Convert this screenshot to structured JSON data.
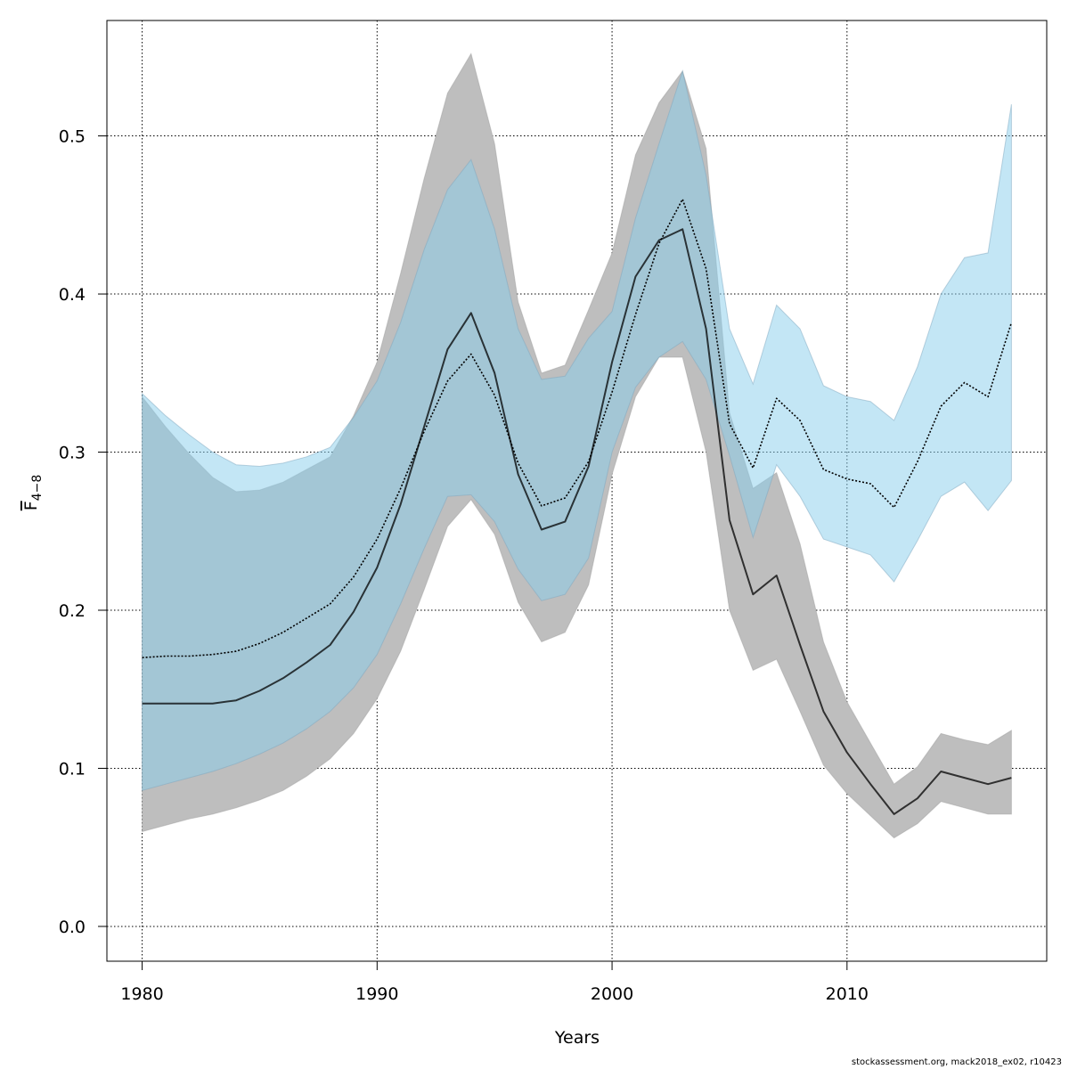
{
  "chart_data": {
    "type": "line",
    "xlabel": "Years",
    "ylabel": {
      "main": "F",
      "sub": "4−8"
    },
    "xlim": [
      1978.5,
      2018.5
    ],
    "ylim": [
      -0.022,
      0.573
    ],
    "xticks": [
      1980,
      1990,
      2000,
      2010
    ],
    "yticks": [
      0.0,
      0.1,
      0.2,
      0.3,
      0.4,
      0.5
    ],
    "ytick_labels": [
      "0.0",
      "0.1",
      "0.2",
      "0.3",
      "0.4",
      "0.5"
    ],
    "grid": true,
    "x": [
      1980,
      1981,
      1982,
      1983,
      1984,
      1985,
      1986,
      1987,
      1988,
      1989,
      1990,
      1991,
      1992,
      1993,
      1994,
      1995,
      1996,
      1997,
      1998,
      1999,
      2000,
      2001,
      2002,
      2003,
      2004,
      2005,
      2006,
      2007,
      2008,
      2009,
      2010,
      2011,
      2012,
      2013,
      2014,
      2015,
      2016,
      2017
    ],
    "series": [
      {
        "line_style": "solid",
        "color": "#000000",
        "band_color": "#bebebe",
        "values": [
          0.141,
          0.141,
          0.141,
          0.141,
          0.143,
          0.149,
          0.157,
          0.167,
          0.178,
          0.199,
          0.227,
          0.267,
          0.316,
          0.365,
          0.388,
          0.35,
          0.286,
          0.251,
          0.256,
          0.291,
          0.357,
          0.411,
          0.434,
          0.441,
          0.378,
          0.257,
          0.21,
          0.222,
          0.178,
          0.136,
          0.11,
          0.09,
          0.071,
          0.081,
          0.098,
          0.094,
          0.09,
          0.094
        ],
        "lower": [
          0.06,
          0.064,
          0.068,
          0.071,
          0.075,
          0.08,
          0.086,
          0.095,
          0.106,
          0.122,
          0.144,
          0.174,
          0.213,
          0.253,
          0.27,
          0.248,
          0.205,
          0.18,
          0.186,
          0.216,
          0.286,
          0.335,
          0.36,
          0.36,
          0.3,
          0.2,
          0.162,
          0.169,
          0.136,
          0.102,
          0.084,
          0.07,
          0.056,
          0.065,
          0.079,
          0.075,
          0.071,
          0.071
        ],
        "upper": [
          0.335,
          0.316,
          0.299,
          0.284,
          0.275,
          0.276,
          0.281,
          0.289,
          0.297,
          0.323,
          0.357,
          0.413,
          0.473,
          0.527,
          0.552,
          0.495,
          0.395,
          0.35,
          0.355,
          0.39,
          0.426,
          0.488,
          0.521,
          0.541,
          0.492,
          0.325,
          0.277,
          0.287,
          0.242,
          0.18,
          0.142,
          0.116,
          0.09,
          0.101,
          0.122,
          0.118,
          0.115,
          0.124
        ]
      },
      {
        "line_style": "dotted",
        "color": "#000000",
        "band_color": "#87ceeb",
        "values": [
          0.17,
          0.171,
          0.171,
          0.172,
          0.174,
          0.179,
          0.186,
          0.195,
          0.204,
          0.221,
          0.245,
          0.277,
          0.313,
          0.345,
          0.362,
          0.336,
          0.293,
          0.266,
          0.271,
          0.294,
          0.338,
          0.387,
          0.432,
          0.46,
          0.416,
          0.318,
          0.29,
          0.334,
          0.32,
          0.289,
          0.283,
          0.28,
          0.265,
          0.294,
          0.329,
          0.344,
          0.335,
          0.382
        ],
        "lower": [
          0.086,
          0.09,
          0.094,
          0.098,
          0.103,
          0.109,
          0.116,
          0.125,
          0.136,
          0.151,
          0.172,
          0.204,
          0.239,
          0.272,
          0.273,
          0.256,
          0.226,
          0.206,
          0.21,
          0.233,
          0.3,
          0.341,
          0.36,
          0.37,
          0.346,
          0.298,
          0.246,
          0.292,
          0.272,
          0.245,
          0.24,
          0.235,
          0.218,
          0.244,
          0.272,
          0.281,
          0.263,
          0.282
        ],
        "upper": [
          0.337,
          0.323,
          0.311,
          0.3,
          0.292,
          0.291,
          0.293,
          0.297,
          0.303,
          0.322,
          0.345,
          0.382,
          0.428,
          0.466,
          0.485,
          0.441,
          0.378,
          0.346,
          0.348,
          0.372,
          0.389,
          0.448,
          0.495,
          0.541,
          0.475,
          0.378,
          0.343,
          0.393,
          0.378,
          0.342,
          0.335,
          0.332,
          0.32,
          0.354,
          0.4,
          0.423,
          0.426,
          0.52
        ]
      }
    ]
  },
  "footer": "stockassessment.org, mack2018_ex02, r10423"
}
